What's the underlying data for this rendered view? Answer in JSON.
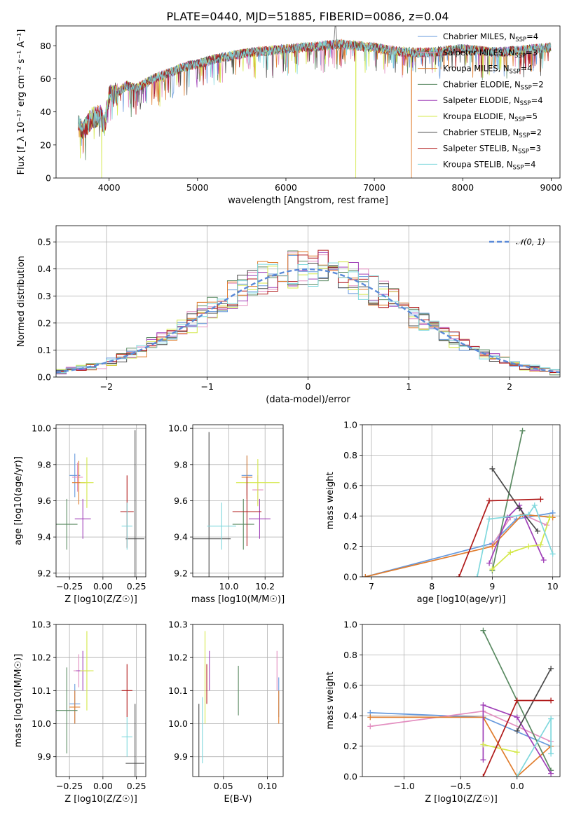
{
  "figure_title": "PLATE=0440, MJD=51885, FIBERID=0086, z=0.04",
  "models": [
    {
      "name": "Chabrier MILES",
      "nssp": "4",
      "color": "#6699dd"
    },
    {
      "name": "Salpeter MILES",
      "nssp": "3",
      "color": "#e38fc0"
    },
    {
      "name": "Kroupa MILES",
      "nssp": "4",
      "color": "#e07d2e"
    },
    {
      "name": "Chabrier ELODIE",
      "nssp": "2",
      "color": "#5a8a62"
    },
    {
      "name": "Salpeter ELODIE",
      "nssp": "4",
      "color": "#a040b8"
    },
    {
      "name": "Kroupa ELODIE",
      "nssp": "5",
      "color": "#d4e84a"
    },
    {
      "name": "Chabrier STELIB",
      "nssp": "2",
      "color": "#4a4a4a"
    },
    {
      "name": "Salpeter STELIB",
      "nssp": "3",
      "color": "#b01a1a"
    },
    {
      "name": "Kroupa STELIB",
      "nssp": "4",
      "color": "#7fd8dd"
    }
  ],
  "chart_data": [
    {
      "id": "spectrum",
      "type": "line",
      "xlabel": "wavelength [Angstrom, rest frame]",
      "ylabel": "Flux [f_λ 10⁻¹⁷ erg cm⁻² s⁻¹ A⁻¹]",
      "xlim": [
        3400,
        9100
      ],
      "ylim": [
        0,
        92
      ],
      "xticks": [
        4000,
        5000,
        6000,
        7000,
        8000,
        9000
      ],
      "yticks": [
        0,
        20,
        40,
        60,
        80
      ],
      "grid": false,
      "legend": "top-right",
      "continuum": {
        "x": [
          3650,
          3700,
          3800,
          3900,
          3950,
          4000,
          4100,
          4200,
          4300,
          4500,
          4700,
          4900,
          5000,
          5200,
          5400,
          5600,
          5800,
          6000,
          6200,
          6400,
          6600,
          6800,
          7000,
          7200,
          7400,
          7600,
          7800,
          8000,
          8200,
          8400,
          8600,
          8800,
          9000
        ],
        "y": [
          32,
          28,
          36,
          38,
          32,
          50,
          52,
          56,
          54,
          60,
          64,
          68,
          69,
          72,
          74,
          76,
          77,
          78,
          79,
          80,
          81,
          80,
          79,
          77,
          76,
          76,
          77,
          78,
          77,
          76,
          77,
          78,
          79
        ]
      },
      "dropouts": [
        {
          "x": 3915,
          "series": "Kroupa ELODIE"
        },
        {
          "x": 6790,
          "series": "Kroupa ELODIE"
        },
        {
          "x": 7420,
          "series": "Kroupa MILES"
        }
      ]
    },
    {
      "id": "residuals",
      "type": "histogram",
      "xlabel": "(data-model)/error",
      "ylabel": "Normed distribution",
      "xlim": [
        -2.5,
        2.5
      ],
      "ylim": [
        0,
        0.56
      ],
      "xticks": [
        -2,
        -1,
        0,
        1,
        2
      ],
      "yticks": [
        0.0,
        0.1,
        0.2,
        0.3,
        0.4,
        0.5
      ],
      "grid": true,
      "legend_label": "𝒩(0, 1)",
      "reference": {
        "type": "gaussian",
        "mu": 0,
        "sigma": 1
      }
    },
    {
      "id": "age_vs_Z",
      "type": "errorbar",
      "xlabel": "Z [log10(Z/Z☉)]",
      "ylabel": "age  [log10(age/yr)]",
      "xlim": [
        -0.35,
        0.32
      ],
      "ylim": [
        9.18,
        10.02
      ],
      "xticks": [
        -0.25,
        0.0,
        0.25
      ],
      "yticks": [
        9.2,
        9.4,
        9.6,
        9.8,
        10.0
      ],
      "grid": true,
      "points": [
        {
          "x": -0.21,
          "xerr": 0.04,
          "y": 9.74,
          "yerr": 0.12
        },
        {
          "x": -0.19,
          "xerr": 0.04,
          "y": 9.73,
          "yerr": 0.08
        },
        {
          "x": -0.18,
          "xerr": 0.05,
          "y": 9.7,
          "yerr": 0.12
        },
        {
          "x": -0.27,
          "xerr": 0.08,
          "y": 9.47,
          "yerr": 0.14
        },
        {
          "x": -0.15,
          "xerr": 0.06,
          "y": 9.5,
          "yerr": 0.11
        },
        {
          "x": -0.12,
          "xerr": 0.05,
          "y": 9.7,
          "yerr": 0.14
        },
        {
          "x": 0.24,
          "xerr": 0.07,
          "y": 9.39,
          "yerr": 0.6
        },
        {
          "x": 0.18,
          "xerr": 0.05,
          "y": 9.54,
          "yerr": 0.2
        },
        {
          "x": 0.18,
          "xerr": 0.04,
          "y": 9.46,
          "yerr": 0.13
        }
      ]
    },
    {
      "id": "age_vs_mass",
      "type": "errorbar",
      "xlabel": "mass [log10(M/M☉)]",
      "xlim": [
        9.8,
        10.3
      ],
      "ylim": [
        9.18,
        10.02
      ],
      "xticks": [
        10.0,
        10.2
      ],
      "yticks": [
        9.2,
        9.4,
        9.6,
        9.8,
        10.0
      ],
      "grid": true,
      "points": [
        {
          "x": 10.1,
          "xerr": 0.03,
          "y": 9.74,
          "yerr": 0.11
        },
        {
          "x": 10.16,
          "xerr": 0.03,
          "y": 9.66,
          "yerr": 0.08
        },
        {
          "x": 10.1,
          "xerr": 0.03,
          "y": 9.73,
          "yerr": 0.12
        },
        {
          "x": 10.08,
          "xerr": 0.06,
          "y": 9.47,
          "yerr": 0.14
        },
        {
          "x": 10.17,
          "xerr": 0.06,
          "y": 9.5,
          "yerr": 0.11
        },
        {
          "x": 10.16,
          "xerr": 0.12,
          "y": 9.7,
          "yerr": 0.13
        },
        {
          "x": 9.89,
          "xerr": 0.12,
          "y": 9.39,
          "yerr": 0.59
        },
        {
          "x": 10.1,
          "xerr": 0.08,
          "y": 9.54,
          "yerr": 0.19
        },
        {
          "x": 9.96,
          "xerr": 0.08,
          "y": 9.46,
          "yerr": 0.13
        }
      ]
    },
    {
      "id": "weight_vs_age",
      "type": "line",
      "xlabel": "age  [log10(age/yr)]",
      "ylabel": "mass weight",
      "xlim": [
        6.85,
        10.12
      ],
      "ylim": [
        0,
        1.0
      ],
      "xticks": [
        7,
        8,
        9,
        10
      ],
      "yticks": [
        0.0,
        0.2,
        0.4,
        0.6,
        0.8,
        1.0
      ],
      "grid": true,
      "series": [
        {
          "x": [
            6.9,
            9.0,
            9.4,
            10.0
          ],
          "y": [
            0.0,
            0.22,
            0.38,
            0.42
          ]
        },
        {
          "x": [
            9.0,
            9.3,
            9.5,
            9.9
          ],
          "y": [
            0.21,
            0.39,
            0.41,
            0.34
          ]
        },
        {
          "x": [
            6.9,
            9.0,
            9.5,
            10.0
          ],
          "y": [
            0.0,
            0.2,
            0.41,
            0.39
          ]
        },
        {
          "x": [
            9.0,
            9.5
          ],
          "y": [
            0.04,
            0.96
          ]
        },
        {
          "x": [
            8.95,
            9.25,
            9.45,
            9.85
          ],
          "y": [
            0.09,
            0.39,
            0.47,
            0.11
          ]
        },
        {
          "x": [
            9.0,
            9.3,
            9.6,
            9.8,
            9.95
          ],
          "y": [
            0.05,
            0.16,
            0.2,
            0.21,
            0.39
          ]
        },
        {
          "x": [
            9.0,
            9.45,
            9.75
          ],
          "y": [
            0.71,
            0.45,
            0.3
          ]
        },
        {
          "x": [
            8.45,
            8.95,
            9.8
          ],
          "y": [
            0.0,
            0.5,
            0.51
          ]
        },
        {
          "x": [
            8.75,
            8.95,
            9.6,
            9.7,
            10.0
          ],
          "y": [
            0.0,
            0.38,
            0.41,
            0.47,
            0.15
          ]
        }
      ]
    },
    {
      "id": "mass_vs_Z",
      "type": "errorbar",
      "xlabel": "Z [log10(Z/Z☉)]",
      "ylabel": "mass [log10(M/M☉)]",
      "xlim": [
        -0.35,
        0.32
      ],
      "ylim": [
        9.84,
        10.3
      ],
      "xticks": [
        -0.25,
        0.0,
        0.25
      ],
      "yticks": [
        9.9,
        10.0,
        10.1,
        10.2,
        10.3
      ],
      "grid": true,
      "points": [
        {
          "x": -0.21,
          "xerr": 0.04,
          "y": 10.06,
          "yerr": 0.06
        },
        {
          "x": -0.18,
          "xerr": 0.04,
          "y": 10.16,
          "yerr": 0.05
        },
        {
          "x": -0.21,
          "xerr": 0.04,
          "y": 10.05,
          "yerr": 0.05
        },
        {
          "x": -0.27,
          "xerr": 0.08,
          "y": 10.04,
          "yerr": 0.13
        },
        {
          "x": -0.15,
          "xerr": 0.05,
          "y": 10.16,
          "yerr": 0.06
        },
        {
          "x": -0.12,
          "xerr": 0.05,
          "y": 10.16,
          "yerr": 0.12
        },
        {
          "x": 0.24,
          "xerr": 0.07,
          "y": 9.88,
          "yerr": 0.18
        },
        {
          "x": 0.18,
          "xerr": 0.04,
          "y": 10.1,
          "yerr": 0.08
        },
        {
          "x": 0.18,
          "xerr": 0.04,
          "y": 9.96,
          "yerr": 0.06
        }
      ]
    },
    {
      "id": "mass_vs_ebv",
      "type": "errorbar",
      "xlabel": "E(B-V)",
      "xlim": [
        0.015,
        0.118
      ],
      "ylim": [
        9.84,
        10.3
      ],
      "xticks": [
        0.05,
        0.1
      ],
      "yticks": [
        9.9,
        10.0,
        10.1,
        10.2,
        10.3
      ],
      "grid": true,
      "points": [
        {
          "x": 0.113,
          "y": 10.08,
          "yerr": 0.06
        },
        {
          "x": 0.111,
          "y": 10.16,
          "yerr": 0.06
        },
        {
          "x": 0.113,
          "y": 10.05,
          "yerr": 0.05
        },
        {
          "x": 0.067,
          "y": 10.1,
          "yerr": 0.075
        },
        {
          "x": 0.034,
          "y": 10.16,
          "yerr": 0.06
        },
        {
          "x": 0.029,
          "y": 10.14,
          "yerr": 0.14
        },
        {
          "x": 0.022,
          "y": 9.92,
          "yerr": 0.14
        },
        {
          "x": 0.031,
          "y": 10.12,
          "yerr": 0.06
        },
        {
          "x": 0.026,
          "y": 9.98,
          "yerr": 0.1
        }
      ]
    },
    {
      "id": "weight_vs_Z",
      "type": "line",
      "xlabel": "Z [log10(Z/Z☉)]",
      "ylabel": "mass weight",
      "xlim": [
        -1.37,
        0.38
      ],
      "ylim": [
        0,
        1.0
      ],
      "xticks": [
        -1.0,
        -0.5,
        0.0
      ],
      "yticks": [
        0.0,
        0.2,
        0.4,
        0.6,
        0.8,
        1.0
      ],
      "grid": true,
      "series": [
        {
          "x": [
            -1.3,
            -0.3,
            0.3
          ],
          "y": [
            0.42,
            0.39,
            0.2
          ]
        },
        {
          "x": [
            -1.3,
            -0.3,
            0.3
          ],
          "y": [
            0.33,
            0.43,
            0.23
          ]
        },
        {
          "x": [
            -1.3,
            -0.3,
            0.0,
            0.3
          ],
          "y": [
            0.39,
            0.39,
            0.0,
            0.2
          ]
        },
        {
          "x": [
            -0.3,
            0.3
          ],
          "y": [
            0.96,
            0.04
          ]
        },
        {
          "x": [
            -0.3,
            -0.3,
            0.0,
            0.3
          ],
          "y": [
            0.11,
            0.47,
            0.39,
            0.02
          ]
        },
        {
          "x": [
            -0.3,
            0.0
          ],
          "y": [
            0.21,
            0.16
          ]
        },
        {
          "x": [
            0.0,
            0.3
          ],
          "y": [
            0.3,
            0.71
          ]
        },
        {
          "x": [
            -0.3,
            0.0,
            0.3
          ],
          "y": [
            0.0,
            0.5,
            0.5
          ]
        },
        {
          "x": [
            0.0,
            0.3,
            0.3
          ],
          "y": [
            0.0,
            0.38,
            0.15
          ]
        }
      ]
    }
  ]
}
